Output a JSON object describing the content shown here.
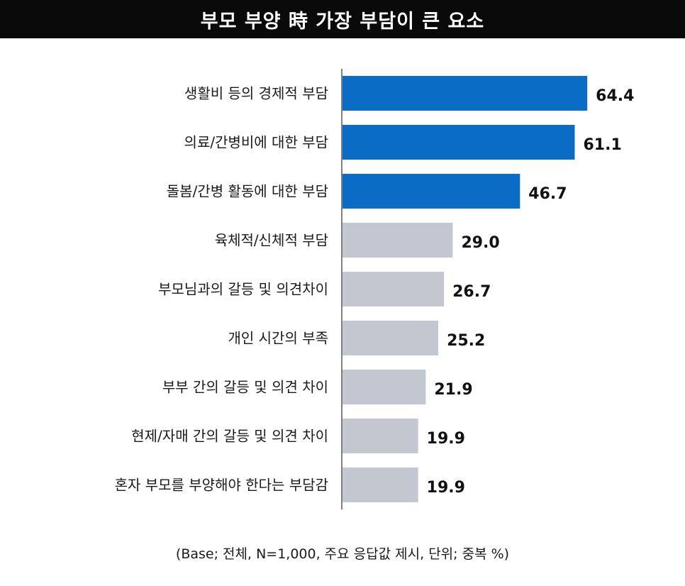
{
  "header": {
    "title": "부모 부양 時 가장 부담이 큰 요소"
  },
  "chart_data": {
    "type": "bar",
    "orientation": "horizontal",
    "title": "부모 부양 時 가장 부담이 큰 요소",
    "categories": [
      "생활비 등의 경제적 부담",
      "의료/간병비에 대한 부담",
      "돌봄/간병 활동에 대한 부담",
      "육체적/신체적 부담",
      "부모님과의 갈등 및 의견차이",
      "개인 시간의 부족",
      "부부 간의 갈등 및 의견 차이",
      "현제/자매 간의 갈등 및 의견 차이",
      "혼자 부모를 부양해야 한다는 부담감"
    ],
    "values": [
      64.4,
      61.1,
      46.7,
      29.0,
      26.7,
      25.2,
      21.9,
      19.9,
      19.9
    ],
    "value_labels": [
      "64.4",
      "61.1",
      "46.7",
      "29.0",
      "26.7",
      "25.2",
      "21.9",
      "19.9",
      "19.9"
    ],
    "colors": [
      "#0a6cc4",
      "#0a6cc4",
      "#0a6cc4",
      "#c3c8d0",
      "#c3c8d0",
      "#c3c8d0",
      "#c3c8d0",
      "#c3c8d0",
      "#c3c8d0"
    ],
    "xlim": [
      0,
      100
    ],
    "grid": false,
    "legend": "none"
  },
  "footnote": "(Base; 전체, N=1,000, 주요 응답값 제시, 단위; 중복 %)"
}
